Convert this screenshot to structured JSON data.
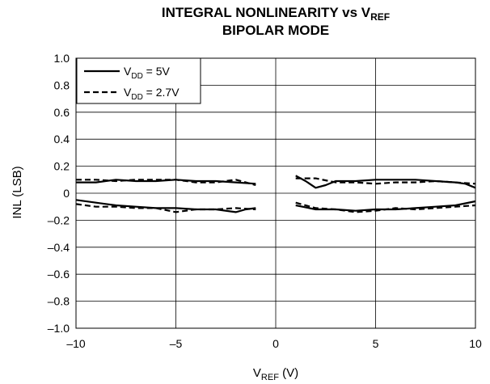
{
  "chart_data": {
    "type": "line",
    "title": {
      "line1": "INTEGRAL NONLINEARITY vs V",
      "line1_sub": "REF",
      "line2": "BIPOLAR MODE"
    },
    "xlabel": {
      "main": "V",
      "sub": "REF",
      "suffix": " (V)"
    },
    "ylabel": "INL (LSB)",
    "xlim": [
      -10,
      10
    ],
    "ylim": [
      -1.0,
      1.0
    ],
    "xticks": [
      {
        "value": -10,
        "label": "–10"
      },
      {
        "value": -5,
        "label": "–5"
      },
      {
        "value": 0,
        "label": "0"
      },
      {
        "value": 5,
        "label": "5"
      },
      {
        "value": 10,
        "label": "10"
      }
    ],
    "yticks": [
      {
        "value": 1.0,
        "label": "1.0"
      },
      {
        "value": 0.8,
        "label": "0.8"
      },
      {
        "value": 0.6,
        "label": "0.6"
      },
      {
        "value": 0.4,
        "label": "0.4"
      },
      {
        "value": 0.2,
        "label": "0.2"
      },
      {
        "value": 0,
        "label": "0"
      },
      {
        "value": -0.2,
        "label": "–0.2"
      },
      {
        "value": -0.4,
        "label": "–0.4"
      },
      {
        "value": -0.6,
        "label": "–0.6"
      },
      {
        "value": -0.8,
        "label": "–0.8"
      },
      {
        "value": -1.0,
        "label": "–1.0"
      }
    ],
    "grid": true,
    "legend_position": "top-left",
    "series": [
      {
        "name": {
          "main": "V",
          "sub": "DD",
          "suffix": " = 5V"
        },
        "style": "solid",
        "color": "#000000",
        "segments": [
          [
            [
              -10,
              0.08
            ],
            [
              -9,
              0.08
            ],
            [
              -8,
              0.1
            ],
            [
              -7,
              0.09
            ],
            [
              -6,
              0.09
            ],
            [
              -5,
              0.1
            ],
            [
              -4,
              0.09
            ],
            [
              -3,
              0.09
            ],
            [
              -2,
              0.08
            ],
            [
              -1,
              0.07
            ]
          ],
          [
            [
              -10,
              -0.05
            ],
            [
              -9,
              -0.07
            ],
            [
              -8,
              -0.09
            ],
            [
              -7,
              -0.1
            ],
            [
              -6,
              -0.11
            ],
            [
              -5,
              -0.11
            ],
            [
              -4,
              -0.12
            ],
            [
              -3,
              -0.12
            ],
            [
              -2,
              -0.14
            ],
            [
              -1.5,
              -0.12
            ],
            [
              -1,
              -0.11
            ]
          ],
          [
            [
              1,
              0.13
            ],
            [
              1.5,
              0.09
            ],
            [
              2,
              0.04
            ],
            [
              2.5,
              0.06
            ],
            [
              3,
              0.09
            ],
            [
              4,
              0.09
            ],
            [
              5,
              0.1
            ],
            [
              6,
              0.1
            ],
            [
              7,
              0.1
            ],
            [
              8,
              0.09
            ],
            [
              9,
              0.08
            ],
            [
              9.5,
              0.07
            ],
            [
              10,
              0.04
            ]
          ],
          [
            [
              1,
              -0.09
            ],
            [
              2,
              -0.12
            ],
            [
              3,
              -0.12
            ],
            [
              4,
              -0.13
            ],
            [
              5,
              -0.12
            ],
            [
              6,
              -0.12
            ],
            [
              7,
              -0.11
            ],
            [
              8,
              -0.1
            ],
            [
              9,
              -0.09
            ],
            [
              10,
              -0.06
            ]
          ]
        ]
      },
      {
        "name": {
          "main": "V",
          "sub": "DD",
          "suffix": " = 2.7V"
        },
        "style": "dashed",
        "color": "#000000",
        "segments": [
          [
            [
              -10,
              0.1
            ],
            [
              -9,
              0.1
            ],
            [
              -8,
              0.09
            ],
            [
              -7,
              0.1
            ],
            [
              -6,
              0.1
            ],
            [
              -5,
              0.1
            ],
            [
              -4,
              0.08
            ],
            [
              -3,
              0.08
            ],
            [
              -2,
              0.1
            ],
            [
              -1.5,
              0.08
            ],
            [
              -1,
              0.06
            ]
          ],
          [
            [
              -10,
              -0.08
            ],
            [
              -9,
              -0.1
            ],
            [
              -8,
              -0.1
            ],
            [
              -7,
              -0.11
            ],
            [
              -6,
              -0.11
            ],
            [
              -5,
              -0.14
            ],
            [
              -4,
              -0.12
            ],
            [
              -3,
              -0.12
            ],
            [
              -2,
              -0.11
            ],
            [
              -1,
              -0.12
            ]
          ],
          [
            [
              1,
              0.11
            ],
            [
              2,
              0.11
            ],
            [
              3,
              0.08
            ],
            [
              4,
              0.08
            ],
            [
              5,
              0.07
            ],
            [
              6,
              0.08
            ],
            [
              7,
              0.08
            ],
            [
              8,
              0.09
            ],
            [
              9,
              0.08
            ],
            [
              10,
              0.07
            ]
          ],
          [
            [
              1,
              -0.07
            ],
            [
              2,
              -0.11
            ],
            [
              3,
              -0.12
            ],
            [
              4,
              -0.14
            ],
            [
              5,
              -0.13
            ],
            [
              6,
              -0.11
            ],
            [
              7,
              -0.12
            ],
            [
              8,
              -0.11
            ],
            [
              9,
              -0.1
            ],
            [
              10,
              -0.09
            ]
          ]
        ]
      }
    ]
  }
}
